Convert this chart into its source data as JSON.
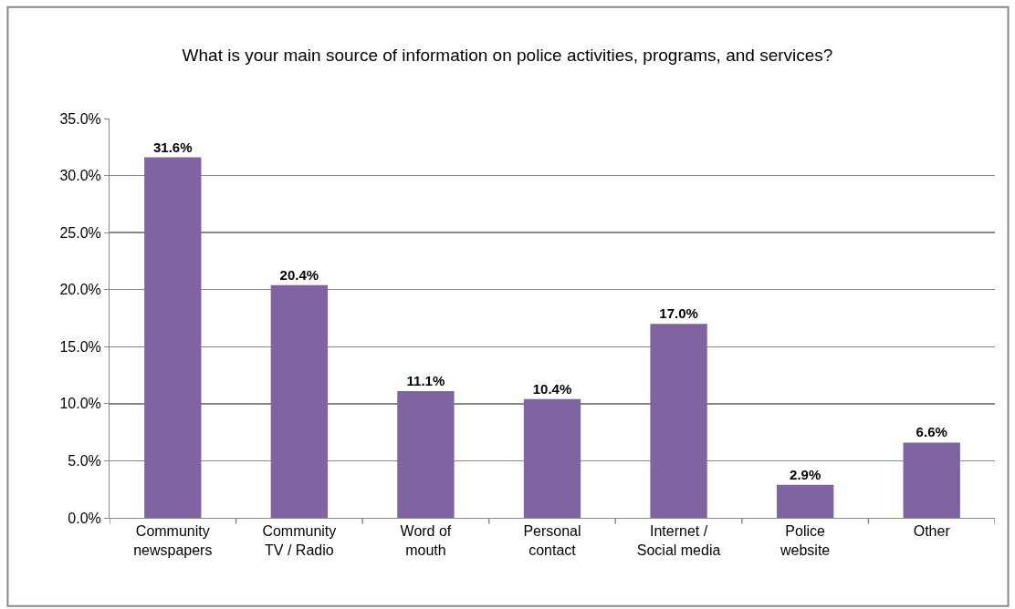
{
  "chart_data": {
    "type": "bar",
    "title": "What is your main source of information on police activities, programs, and services?",
    "categories": [
      "Community\nnewspapers",
      "Community\nTV / Radio",
      "Word of\nmouth",
      "Personal\ncontact",
      "Internet /\nSocial media",
      "Police\nwebsite",
      "Other"
    ],
    "values": [
      31.6,
      20.4,
      11.1,
      10.4,
      17.0,
      2.9,
      6.6
    ],
    "value_labels": [
      "31.6%",
      "20.4%",
      "11.1%",
      "10.4%",
      "17.0%",
      "2.9%",
      "6.6%"
    ],
    "color": "#8064a2",
    "ylim": [
      0,
      35
    ],
    "yticks": [
      {
        "value": 0,
        "label": "0.0%"
      },
      {
        "value": 5,
        "label": "5.0%"
      },
      {
        "value": 10,
        "label": "10.0%"
      },
      {
        "value": 15,
        "label": "15.0%"
      },
      {
        "value": 20,
        "label": "20.0%"
      },
      {
        "value": 25,
        "label": "25.0%"
      },
      {
        "value": 30,
        "label": "30.0%"
      },
      {
        "value": 35,
        "label": "35.0%"
      }
    ],
    "grid": "y"
  }
}
